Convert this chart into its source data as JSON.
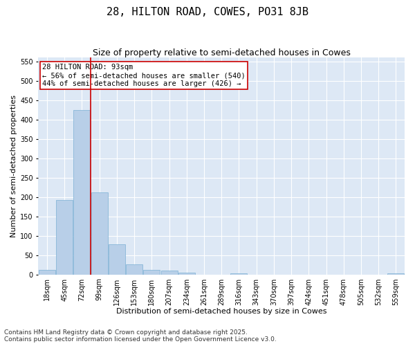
{
  "title": "28, HILTON ROAD, COWES, PO31 8JB",
  "subtitle": "Size of property relative to semi-detached houses in Cowes",
  "xlabel": "Distribution of semi-detached houses by size in Cowes",
  "ylabel": "Number of semi-detached properties",
  "categories": [
    "18sqm",
    "45sqm",
    "72sqm",
    "99sqm",
    "126sqm",
    "153sqm",
    "180sqm",
    "207sqm",
    "234sqm",
    "261sqm",
    "289sqm",
    "316sqm",
    "343sqm",
    "370sqm",
    "397sqm",
    "424sqm",
    "451sqm",
    "478sqm",
    "505sqm",
    "532sqm",
    "559sqm"
  ],
  "values": [
    12,
    193,
    425,
    212,
    77,
    26,
    12,
    10,
    5,
    0,
    0,
    3,
    0,
    0,
    0,
    0,
    0,
    0,
    0,
    0,
    3
  ],
  "bar_color": "#b8cfe8",
  "bar_edge_color": "#7aafd4",
  "vline_color": "#cc0000",
  "annotation_text": "28 HILTON ROAD: 93sqm\n← 56% of semi-detached houses are smaller (540)\n44% of semi-detached houses are larger (426) →",
  "annotation_box_color": "#ffffff",
  "annotation_box_edge": "#cc0000",
  "ylim": [
    0,
    560
  ],
  "yticks": [
    0,
    50,
    100,
    150,
    200,
    250,
    300,
    350,
    400,
    450,
    500,
    550
  ],
  "background_color": "#dde8f5",
  "footer": "Contains HM Land Registry data © Crown copyright and database right 2025.\nContains public sector information licensed under the Open Government Licence v3.0.",
  "title_fontsize": 11,
  "subtitle_fontsize": 9,
  "axis_label_fontsize": 8,
  "tick_fontsize": 7,
  "annotation_fontsize": 7.5,
  "footer_fontsize": 6.5
}
